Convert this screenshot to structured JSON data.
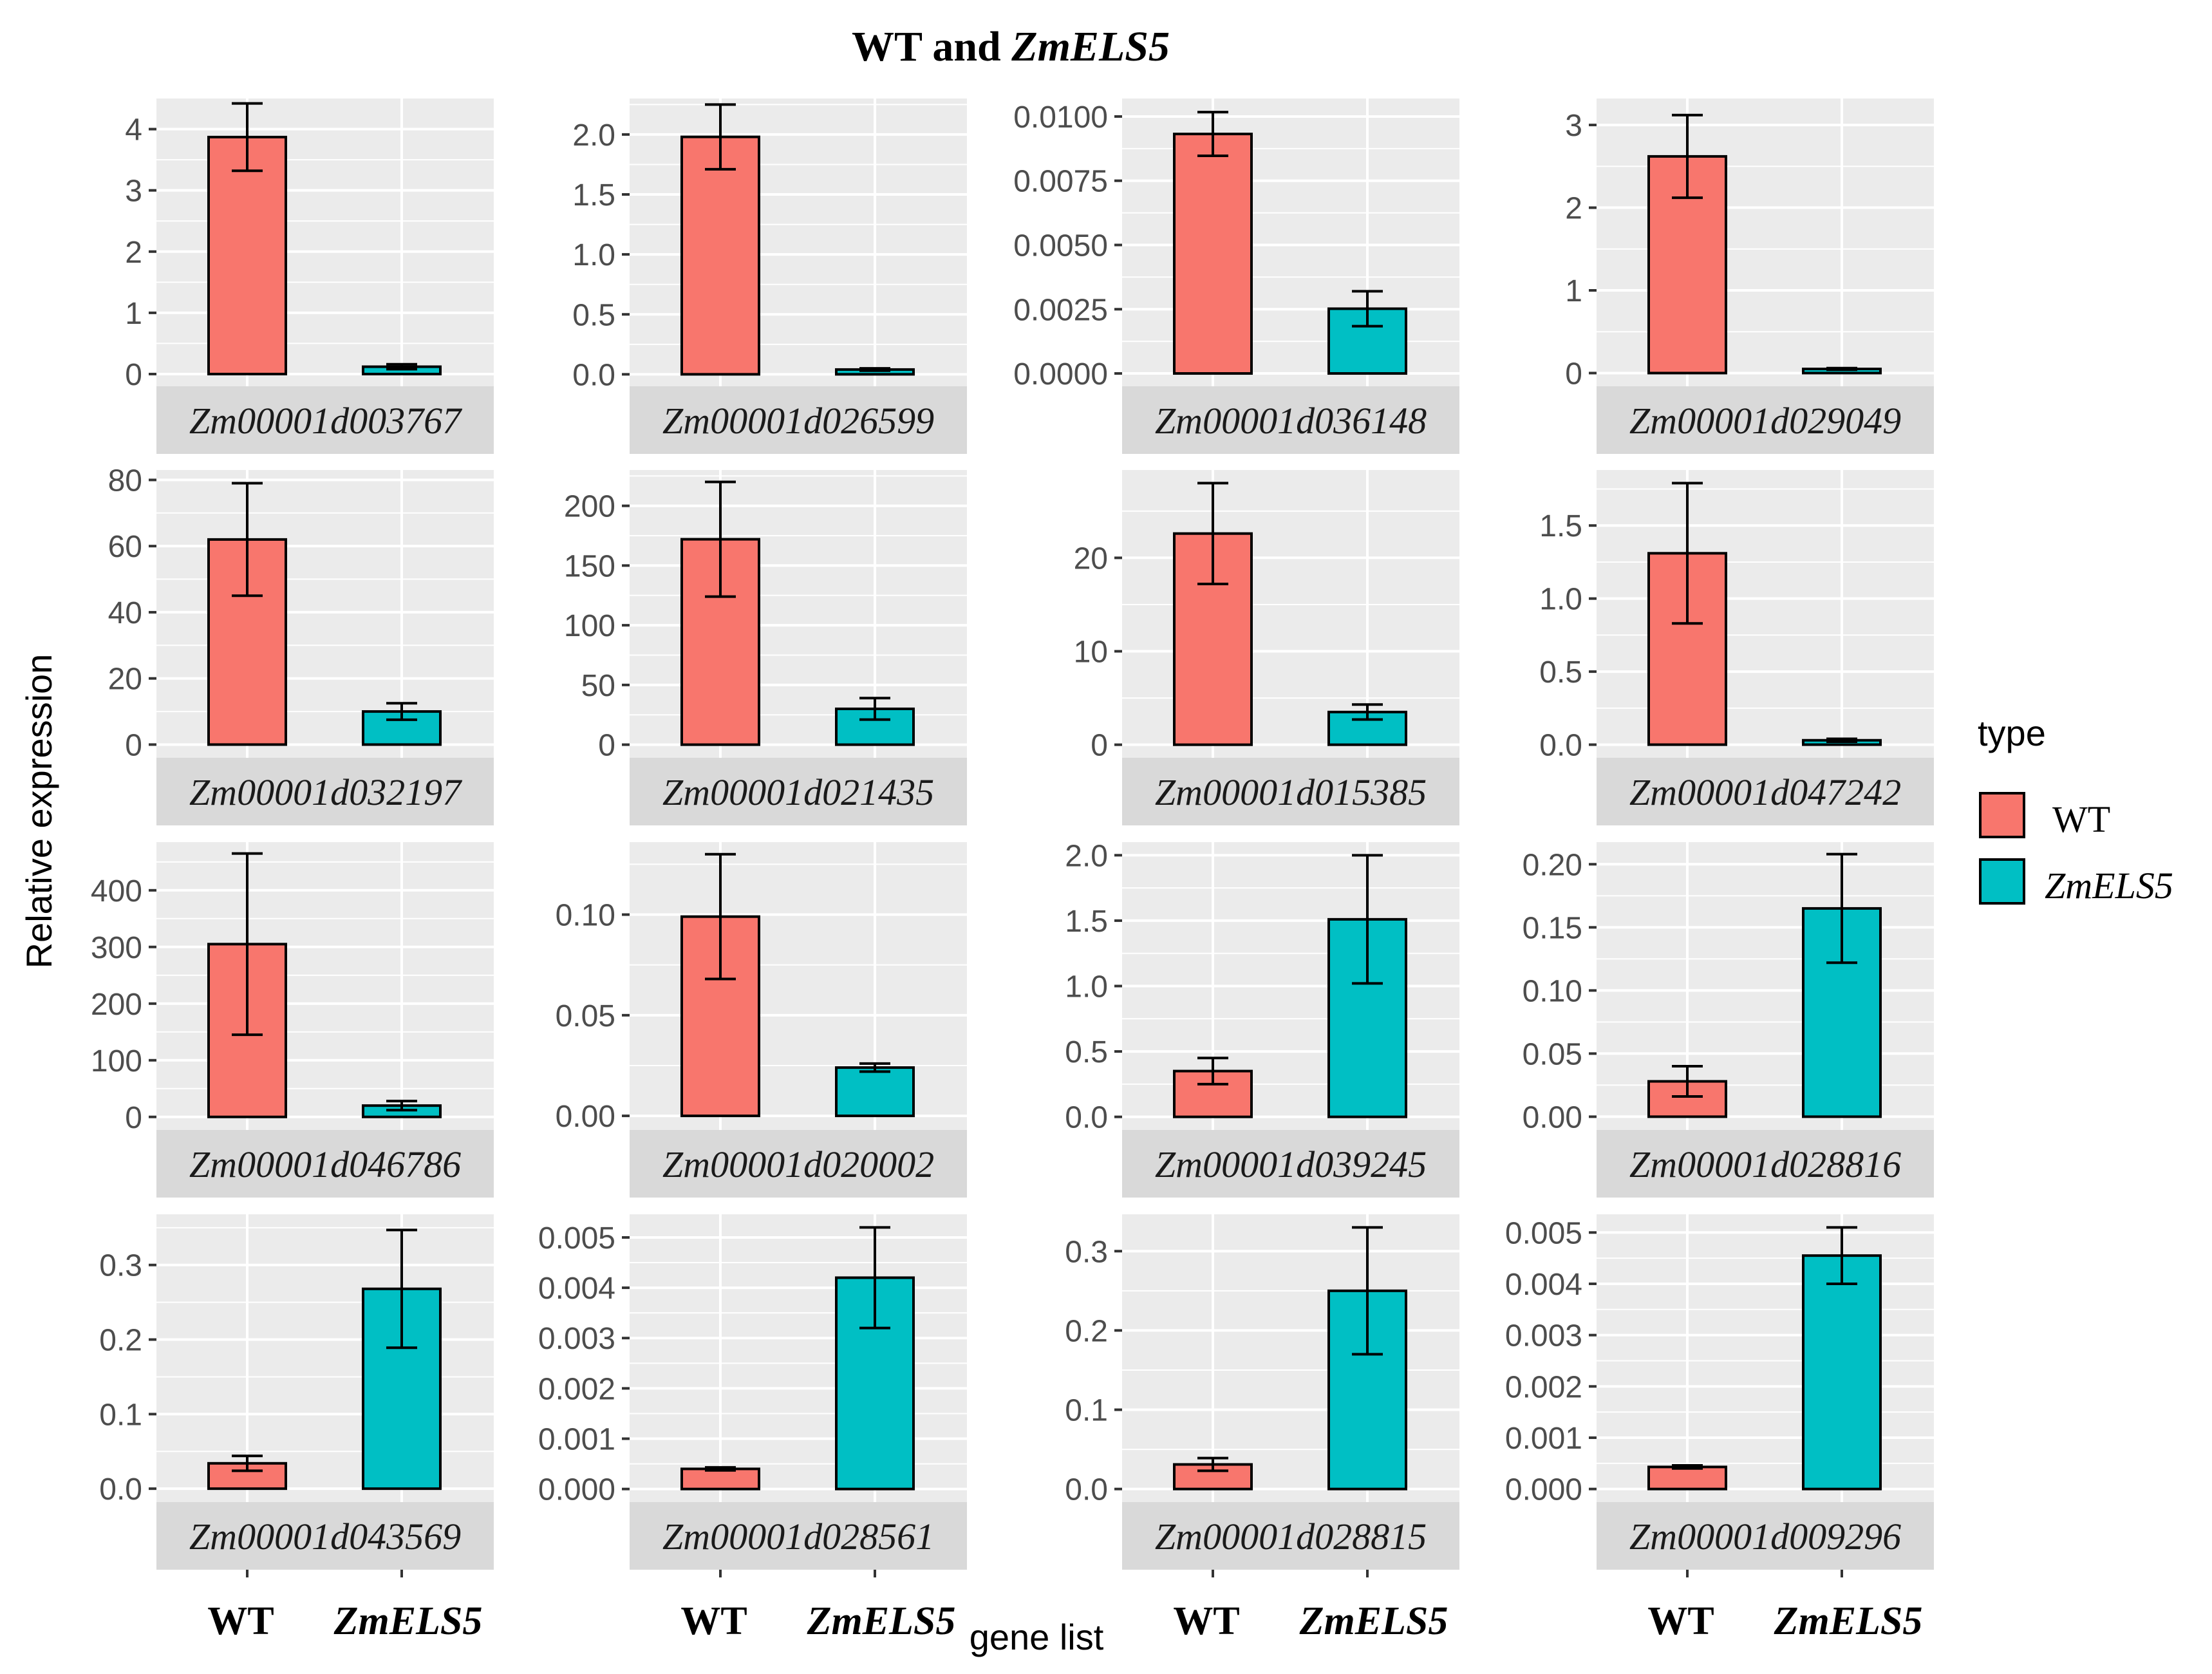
{
  "chart_data": {
    "type": "bar",
    "title_plain": "WT and ",
    "title_italic": "ZmELS5",
    "ylabel": "Relative expression",
    "xlabel": "gene list",
    "categories": [
      "WT",
      "ZmELS5"
    ],
    "legend": {
      "title": "type",
      "entries": [
        {
          "label": "WT",
          "color": "#F8766D"
        },
        {
          "label": "ZmELS5",
          "color": "#00BFC4"
        }
      ],
      "placement": "right"
    },
    "colors": {
      "WT": "#F8766D",
      "ZmELS5": "#00BFC4",
      "panel": "#EBEBEB",
      "strip": "#D9D9D9",
      "grid": "#FFFFFF"
    },
    "panels": [
      {
        "gene": "Zm00001d003767",
        "values": [
          3.87,
          0.12
        ],
        "errors": [
          0.55,
          0.04
        ],
        "ylim": [
          -0.2,
          4.5
        ],
        "ticks": [
          0,
          1,
          2,
          3,
          4
        ],
        "tick_labels": [
          "0",
          "1",
          "2",
          "3",
          "4"
        ]
      },
      {
        "gene": "Zm00001d026599",
        "values": [
          1.98,
          0.04
        ],
        "errors": [
          0.27,
          0.01
        ],
        "ylim": [
          -0.1,
          2.3
        ],
        "ticks": [
          0,
          0.5,
          1,
          1.5,
          2
        ],
        "tick_labels": [
          "0.0",
          "0.5",
          "1.0",
          "1.5",
          "2.0"
        ]
      },
      {
        "gene": "Zm00001d036148",
        "values": [
          0.00932,
          0.00252
        ],
        "errors": [
          0.00085,
          0.00068
        ],
        "ylim": [
          -0.0005,
          0.0107
        ],
        "ticks": [
          0,
          0.0025,
          0.005,
          0.0075,
          0.01
        ],
        "tick_labels": [
          "0.0000",
          "0.0025",
          "0.0050",
          "0.0075",
          "0.0100"
        ]
      },
      {
        "gene": "Zm00001d029049",
        "values": [
          2.62,
          0.05
        ],
        "errors": [
          0.5,
          0.01
        ],
        "ylim": [
          -0.16,
          3.32
        ],
        "ticks": [
          0,
          1,
          2,
          3
        ],
        "tick_labels": [
          "0",
          "1",
          "2",
          "3"
        ]
      },
      {
        "gene": "Zm00001d032197",
        "values": [
          62,
          10
        ],
        "errors": [
          17,
          2.5
        ],
        "ylim": [
          -4,
          83
        ],
        "ticks": [
          0,
          20,
          40,
          60,
          80
        ],
        "tick_labels": [
          "0",
          "20",
          "40",
          "60",
          "80"
        ]
      },
      {
        "gene": "Zm00001d021435",
        "values": [
          172,
          30
        ],
        "errors": [
          48,
          9
        ],
        "ylim": [
          -11,
          230
        ],
        "ticks": [
          0,
          50,
          100,
          150,
          200
        ],
        "tick_labels": [
          "0",
          "50",
          "100",
          "150",
          "200"
        ]
      },
      {
        "gene": "Zm00001d015385",
        "values": [
          22.6,
          3.5
        ],
        "errors": [
          5.4,
          0.8
        ],
        "ylim": [
          -1.4,
          29.4
        ],
        "ticks": [
          0,
          10,
          20
        ],
        "tick_labels": [
          "0",
          "10",
          "20"
        ]
      },
      {
        "gene": "Zm00001d047242",
        "values": [
          1.31,
          0.03
        ],
        "errors": [
          0.48,
          0.01
        ],
        "ylim": [
          -0.09,
          1.88
        ],
        "ticks": [
          0,
          0.5,
          1,
          1.5
        ],
        "tick_labels": [
          "0.0",
          "0.5",
          "1.0",
          "1.5"
        ]
      },
      {
        "gene": "Zm00001d046786",
        "values": [
          305,
          20
        ],
        "errors": [
          160,
          8
        ],
        "ylim": [
          -23,
          485
        ],
        "ticks": [
          0,
          100,
          200,
          300,
          400
        ],
        "tick_labels": [
          "0",
          "100",
          "200",
          "300",
          "400"
        ]
      },
      {
        "gene": "Zm00001d020002",
        "values": [
          0.099,
          0.024
        ],
        "errors": [
          0.031,
          0.002
        ],
        "ylim": [
          -0.007,
          0.136
        ],
        "ticks": [
          0,
          0.05,
          0.1
        ],
        "tick_labels": [
          "0.00",
          "0.05",
          "0.10"
        ]
      },
      {
        "gene": "Zm00001d039245",
        "values": [
          0.35,
          1.51
        ],
        "errors": [
          0.1,
          0.49
        ],
        "ylim": [
          -0.1,
          2.1
        ],
        "ticks": [
          0,
          0.5,
          1,
          1.5,
          2
        ],
        "tick_labels": [
          "0.0",
          "0.5",
          "1.0",
          "1.5",
          "2.0"
        ]
      },
      {
        "gene": "Zm00001d028816",
        "values": [
          0.028,
          0.165
        ],
        "errors": [
          0.012,
          0.043
        ],
        "ylim": [
          -0.0105,
          0.2175
        ],
        "ticks": [
          0,
          0.05,
          0.1,
          0.15,
          0.2
        ],
        "tick_labels": [
          "0.00",
          "0.05",
          "0.10",
          "0.15",
          "0.20"
        ]
      },
      {
        "gene": "Zm00001d043569",
        "values": [
          0.034,
          0.268
        ],
        "errors": [
          0.01,
          0.079
        ],
        "ylim": [
          -0.018,
          0.368
        ],
        "ticks": [
          0,
          0.1,
          0.2,
          0.3
        ],
        "tick_labels": [
          "0.0",
          "0.1",
          "0.2",
          "0.3"
        ]
      },
      {
        "gene": "Zm00001d028561",
        "values": [
          0.0004,
          0.0042
        ],
        "errors": [
          3e-05,
          0.001
        ],
        "ylim": [
          -0.00026,
          0.00546
        ],
        "ticks": [
          0,
          0.001,
          0.002,
          0.003,
          0.004,
          0.005
        ],
        "tick_labels": [
          "0.000",
          "0.001",
          "0.002",
          "0.003",
          "0.004",
          "0.005"
        ]
      },
      {
        "gene": "Zm00001d028815",
        "values": [
          0.031,
          0.25
        ],
        "errors": [
          0.008,
          0.08
        ],
        "ylim": [
          -0.0165,
          0.3465
        ],
        "ticks": [
          0,
          0.1,
          0.2,
          0.3
        ],
        "tick_labels": [
          "0.0",
          "0.1",
          "0.2",
          "0.3"
        ]
      },
      {
        "gene": "Zm00001d009296",
        "values": [
          0.00043,
          0.00455
        ],
        "errors": [
          3e-05,
          0.00055
        ],
        "ylim": [
          -0.000255,
          0.005355
        ],
        "ticks": [
          0,
          0.001,
          0.002,
          0.003,
          0.004,
          0.005
        ],
        "tick_labels": [
          "0.000",
          "0.001",
          "0.002",
          "0.003",
          "0.004",
          "0.005"
        ]
      }
    ]
  }
}
